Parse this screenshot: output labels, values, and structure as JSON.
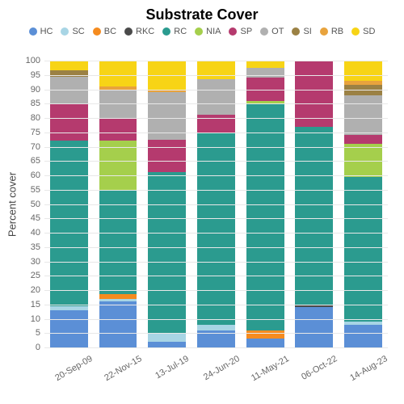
{
  "chart": {
    "type": "stacked-bar",
    "title": "Substrate Cover",
    "title_fontsize": 18,
    "ylabel": "Percent cover",
    "ylabel_fontsize": 13,
    "ylim": [
      0,
      100
    ],
    "ytick_step": 5,
    "grid_color": "#e8e8e8",
    "background": "#ffffff",
    "bar_width_pct": 11,
    "series": [
      {
        "key": "HC",
        "label": "HC",
        "color": "#5b8fd6"
      },
      {
        "key": "SC",
        "label": "SC",
        "color": "#a8d5e5"
      },
      {
        "key": "BC",
        "label": "BC",
        "color": "#f58b1f"
      },
      {
        "key": "RKC",
        "label": "RKC",
        "color": "#4a4a4a"
      },
      {
        "key": "RC",
        "label": "RC",
        "color": "#2b9b8f"
      },
      {
        "key": "NIA",
        "label": "NIA",
        "color": "#a5cf4c"
      },
      {
        "key": "SP",
        "label": "SP",
        "color": "#b53a6e"
      },
      {
        "key": "OT",
        "label": "OT",
        "color": "#b0b0b0"
      },
      {
        "key": "SI",
        "label": "SI",
        "color": "#9b8144"
      },
      {
        "key": "RB",
        "label": "RB",
        "color": "#e8a33d"
      },
      {
        "key": "SD",
        "label": "SD",
        "color": "#f7d416"
      }
    ],
    "categories": [
      "20-Sep-09",
      "22-Nov-15",
      "13-Jul-19",
      "24-Jun-20",
      "11-May-21",
      "06-Oct-22",
      "14-Aug-23"
    ],
    "data": [
      {
        "HC": 13,
        "SC": 1.5,
        "BC": 0,
        "RKC": 0,
        "RC": 57.5,
        "NIA": 0,
        "SP": 13,
        "OT": 9.5,
        "SI": 2,
        "RB": 0,
        "SD": 3.5
      },
      {
        "HC": 16,
        "SC": 1,
        "BC": 1.5,
        "RKC": 0,
        "RC": 36.5,
        "NIA": 17,
        "SP": 8,
        "OT": 9.5,
        "SI": 0,
        "RB": 1.5,
        "SD": 9
      },
      {
        "HC": 2,
        "SC": 3,
        "BC": 0,
        "RKC": 0,
        "RC": 56,
        "NIA": 0,
        "SP": 11.5,
        "OT": 16.5,
        "SI": 0,
        "RB": 1,
        "SD": 10
      },
      {
        "HC": 6,
        "SC": 2,
        "BC": 0,
        "RKC": 0,
        "RC": 67,
        "NIA": 0,
        "SP": 6,
        "OT": 12.5,
        "SI": 0,
        "RB": 0,
        "SD": 6.5
      },
      {
        "HC": 3,
        "SC": 0,
        "BC": 3,
        "RKC": 0,
        "RC": 79,
        "NIA": 1,
        "SP": 8,
        "OT": 3.5,
        "SI": 0,
        "RB": 0,
        "SD": 2.5
      },
      {
        "HC": 14,
        "SC": 0,
        "BC": 0,
        "RKC": 1,
        "RC": 62,
        "NIA": 0,
        "SP": 23,
        "OT": 0,
        "SI": 0,
        "RB": 0,
        "SD": 0
      },
      {
        "HC": 8,
        "SC": 1,
        "BC": 0,
        "RKC": 0,
        "RC": 50.5,
        "NIA": 11.5,
        "SP": 3,
        "OT": 14,
        "SI": 3.5,
        "RB": 1.5,
        "SD": 7
      }
    ]
  }
}
